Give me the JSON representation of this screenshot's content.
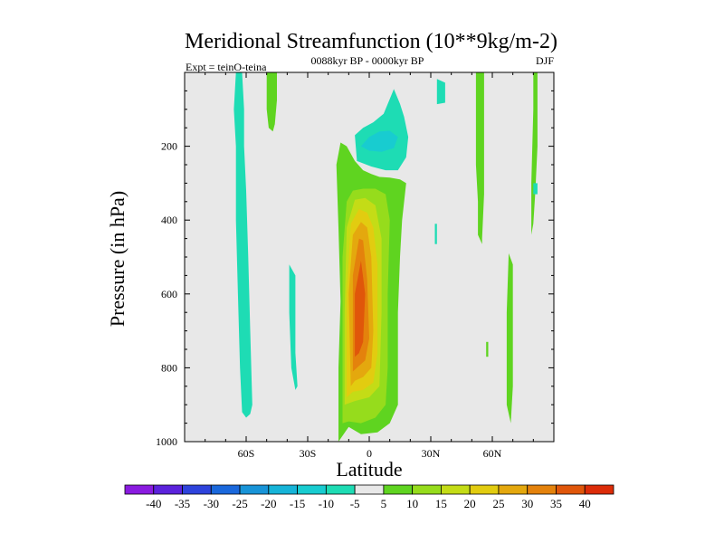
{
  "chart_data": {
    "type": "contour",
    "title": "Meridional Streamfunction (10**9kg/m-2)",
    "subtitle": "0088kyr BP - 0000kyr BP",
    "left_label": "Expt = teinO-teina",
    "right_label": "DJF",
    "xlabel": "Latitude",
    "ylabel": "Pressure (in hPa)",
    "xlim": [
      -90,
      90
    ],
    "ylim": [
      1000,
      0
    ],
    "x_ticks": [
      {
        "value": -60,
        "label": "60S"
      },
      {
        "value": -30,
        "label": "30S"
      },
      {
        "value": 0,
        "label": "0"
      },
      {
        "value": 30,
        "label": "30N"
      },
      {
        "value": 60,
        "label": "60N"
      }
    ],
    "y_ticks": [
      {
        "value": 200,
        "label": "200"
      },
      {
        "value": 400,
        "label": "400"
      },
      {
        "value": 600,
        "label": "600"
      },
      {
        "value": 800,
        "label": "800"
      },
      {
        "value": 1000,
        "label": "1000"
      }
    ],
    "background_color": "#e8e8e8",
    "colorbar": {
      "levels": [
        "-40",
        "-35",
        "-30",
        "-25",
        "-20",
        "-15",
        "-10",
        "-5",
        "5",
        "10",
        "15",
        "20",
        "25",
        "30",
        "35",
        "40"
      ],
      "colors": [
        "#8a1be0",
        "#5b22dc",
        "#2e43dc",
        "#1a68dc",
        "#1894d8",
        "#16b4d8",
        "#18ccd0",
        "#1edcb4",
        "#e8e8e8",
        "#5fd420",
        "#96dc1c",
        "#c4dc16",
        "#e2cc10",
        "#e4a80e",
        "#e4820c",
        "#e0560a",
        "#dc2c08"
      ]
    },
    "regions": [
      {
        "name": "positive-cell-5",
        "level": 5,
        "color": "#5fd420",
        "points": [
          [
            -15,
            1000
          ],
          [
            -15,
            800
          ],
          [
            -14,
            620
          ],
          [
            -15,
            420
          ],
          [
            -16,
            250
          ],
          [
            -14,
            190
          ],
          [
            -11,
            200
          ],
          [
            -7,
            240
          ],
          [
            -3,
            265
          ],
          [
            1,
            275
          ],
          [
            5,
            283
          ],
          [
            10,
            285
          ],
          [
            15,
            290
          ],
          [
            18,
            300
          ],
          [
            16,
            400
          ],
          [
            15,
            500
          ],
          [
            14,
            650
          ],
          [
            14,
            900
          ],
          [
            10,
            950
          ],
          [
            4,
            975
          ],
          [
            -4,
            980
          ],
          [
            -10,
            960
          ]
        ]
      },
      {
        "name": "positive-cell-10",
        "level": 10,
        "color": "#96dc1c",
        "points": [
          [
            -13,
            950
          ],
          [
            -13,
            700
          ],
          [
            -13,
            500
          ],
          [
            -11,
            350
          ],
          [
            -8,
            320
          ],
          [
            -3,
            315
          ],
          [
            3,
            315
          ],
          [
            8,
            330
          ],
          [
            10,
            400
          ],
          [
            9,
            600
          ],
          [
            9,
            800
          ],
          [
            8,
            900
          ],
          [
            3,
            935
          ],
          [
            -4,
            950
          ],
          [
            -10,
            945
          ]
        ]
      },
      {
        "name": "positive-cell-15",
        "level": 15,
        "color": "#c4dc16",
        "points": [
          [
            -12,
            900
          ],
          [
            -12,
            650
          ],
          [
            -11,
            420
          ],
          [
            -7,
            345
          ],
          [
            -2,
            340
          ],
          [
            3,
            360
          ],
          [
            6,
            450
          ],
          [
            6,
            650
          ],
          [
            5,
            850
          ],
          [
            0,
            880
          ],
          [
            -7,
            890
          ]
        ]
      },
      {
        "name": "positive-cell-20",
        "level": 20,
        "color": "#e2cc10",
        "points": [
          [
            -11,
            880
          ],
          [
            -11,
            600
          ],
          [
            -9,
            410
          ],
          [
            -5,
            370
          ],
          [
            -1,
            380
          ],
          [
            2,
            420
          ],
          [
            4,
            520
          ],
          [
            4,
            760
          ],
          [
            2,
            840
          ],
          [
            -3,
            860
          ],
          [
            -8,
            865
          ]
        ]
      },
      {
        "name": "positive-cell-25",
        "level": 25,
        "color": "#e4a80e",
        "points": [
          [
            -9,
            850
          ],
          [
            -10,
            600
          ],
          [
            -8,
            440
          ],
          [
            -4,
            405
          ],
          [
            -1,
            420
          ],
          [
            1,
            500
          ],
          [
            2,
            700
          ],
          [
            1,
            800
          ],
          [
            -3,
            825
          ],
          [
            -7,
            835
          ]
        ]
      },
      {
        "name": "positive-cell-30",
        "level": 30,
        "color": "#e4820c",
        "points": [
          [
            -8,
            810
          ],
          [
            -8,
            550
          ],
          [
            -5,
            450
          ],
          [
            -3,
            455
          ],
          [
            -1,
            560
          ],
          [
            0,
            720
          ],
          [
            -2,
            780
          ],
          [
            -6,
            800
          ]
        ]
      },
      {
        "name": "positive-cell-35",
        "level": 35,
        "color": "#e0560a",
        "points": [
          [
            -7,
            770
          ],
          [
            -7,
            600
          ],
          [
            -4,
            510
          ],
          [
            -2,
            600
          ],
          [
            -3,
            730
          ],
          [
            -5,
            760
          ]
        ]
      },
      {
        "name": "upper-negative-cell-5",
        "level": -5,
        "color": "#1edcb4",
        "points": [
          [
            -6,
            240
          ],
          [
            -7,
            170
          ],
          [
            -3,
            150
          ],
          [
            2,
            135
          ],
          [
            7,
            112
          ],
          [
            10,
            72
          ],
          [
            12,
            45
          ],
          [
            15,
            85
          ],
          [
            17,
            120
          ],
          [
            19,
            175
          ],
          [
            18,
            230
          ],
          [
            14,
            265
          ],
          [
            8,
            265
          ],
          [
            1,
            255
          ]
        ]
      },
      {
        "name": "upper-negative-cell-10",
        "level": -10,
        "color": "#18ccd0",
        "points": [
          [
            -4,
            200
          ],
          [
            0,
            175
          ],
          [
            5,
            160
          ],
          [
            10,
            158
          ],
          [
            14,
            175
          ],
          [
            12,
            205
          ],
          [
            6,
            215
          ],
          [
            0,
            212
          ]
        ]
      },
      {
        "name": "south-hemisphere-negative-strip",
        "level": -5,
        "color": "#1edcb4",
        "points": [
          [
            -65,
            0
          ],
          [
            -62,
            0
          ],
          [
            -61,
            100
          ],
          [
            -61,
            200
          ],
          [
            -60,
            320
          ],
          [
            -59,
            500
          ],
          [
            -58,
            700
          ],
          [
            -57,
            900
          ],
          [
            -58,
            925
          ],
          [
            -60,
            935
          ],
          [
            -62,
            920
          ],
          [
            -63,
            800
          ],
          [
            -64,
            600
          ],
          [
            -65,
            400
          ],
          [
            -65,
            200
          ],
          [
            -66,
            100
          ]
        ]
      },
      {
        "name": "south-hemisphere-positive-strip",
        "level": 5,
        "color": "#5fd420",
        "points": [
          [
            -50,
            0
          ],
          [
            -45,
            0
          ],
          [
            -45,
            75
          ],
          [
            -46,
            140
          ],
          [
            -47,
            160
          ],
          [
            -49,
            150
          ],
          [
            -50,
            100
          ]
        ]
      },
      {
        "name": "midlatitude-negative-strip",
        "level": -5,
        "color": "#1edcb4",
        "points": [
          [
            -39,
            520
          ],
          [
            -36,
            550
          ],
          [
            -36,
            650
          ],
          [
            -36,
            760
          ],
          [
            -35,
            850
          ],
          [
            -36,
            860
          ],
          [
            -38,
            800
          ],
          [
            -39,
            650
          ]
        ]
      },
      {
        "name": "north-positive-strip",
        "level": 5,
        "color": "#5fd420",
        "points": [
          [
            52,
            0
          ],
          [
            56,
            0
          ],
          [
            56,
            150
          ],
          [
            56,
            330
          ],
          [
            55,
            450
          ],
          [
            55,
            465
          ],
          [
            53,
            440
          ],
          [
            53,
            350
          ],
          [
            52,
            250
          ]
        ]
      },
      {
        "name": "north-negative-patch",
        "level": -5,
        "color": "#1edcb4",
        "points": [
          [
            33,
            18
          ],
          [
            37,
            28
          ],
          [
            37,
            82
          ],
          [
            33,
            86
          ]
        ]
      },
      {
        "name": "north-negative-speck",
        "level": -5,
        "color": "#1edcb4",
        "points": [
          [
            32,
            410
          ],
          [
            33,
            410
          ],
          [
            33,
            465
          ],
          [
            32,
            465
          ]
        ]
      },
      {
        "name": "polar-positive-strip",
        "level": 5,
        "color": "#5fd420",
        "points": [
          [
            80,
            0
          ],
          [
            82,
            0
          ],
          [
            82,
            200
          ],
          [
            81,
            320
          ],
          [
            80,
            410
          ],
          [
            79,
            440
          ],
          [
            79,
            300
          ],
          [
            80,
            100
          ]
        ]
      },
      {
        "name": "polar-negative-strip",
        "level": -5,
        "color": "#1edcb4",
        "points": [
          [
            80,
            300
          ],
          [
            82,
            300
          ],
          [
            82,
            330
          ],
          [
            80,
            330
          ]
        ]
      },
      {
        "name": "high-latitude-positive-strip",
        "level": 5,
        "color": "#5fd420",
        "points": [
          [
            68,
            490
          ],
          [
            70,
            520
          ],
          [
            70,
            700
          ],
          [
            70,
            850
          ],
          [
            69,
            950
          ],
          [
            67,
            900
          ],
          [
            67,
            800
          ],
          [
            67,
            650
          ]
        ]
      },
      {
        "name": "small-positive-speck",
        "level": 5,
        "color": "#5fd420",
        "points": [
          [
            57,
            730
          ],
          [
            58,
            730
          ],
          [
            58,
            770
          ],
          [
            57,
            770
          ]
        ]
      }
    ]
  }
}
